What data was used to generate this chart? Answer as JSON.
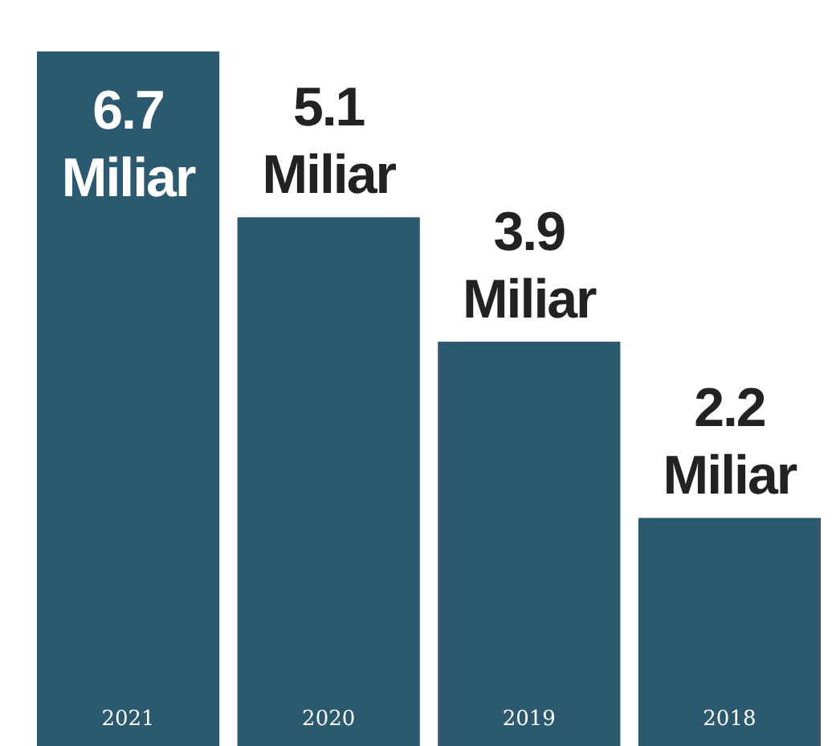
{
  "chart_data": {
    "type": "bar",
    "categories": [
      "2021",
      "2020",
      "2019",
      "2018"
    ],
    "values": [
      6.7,
      5.1,
      3.9,
      2.2
    ],
    "value_labels": [
      "6.7 Miliar",
      "5.1 Miliar",
      "3.9 Miliar",
      "2.2 Miliar"
    ],
    "color": "#2a5970"
  }
}
